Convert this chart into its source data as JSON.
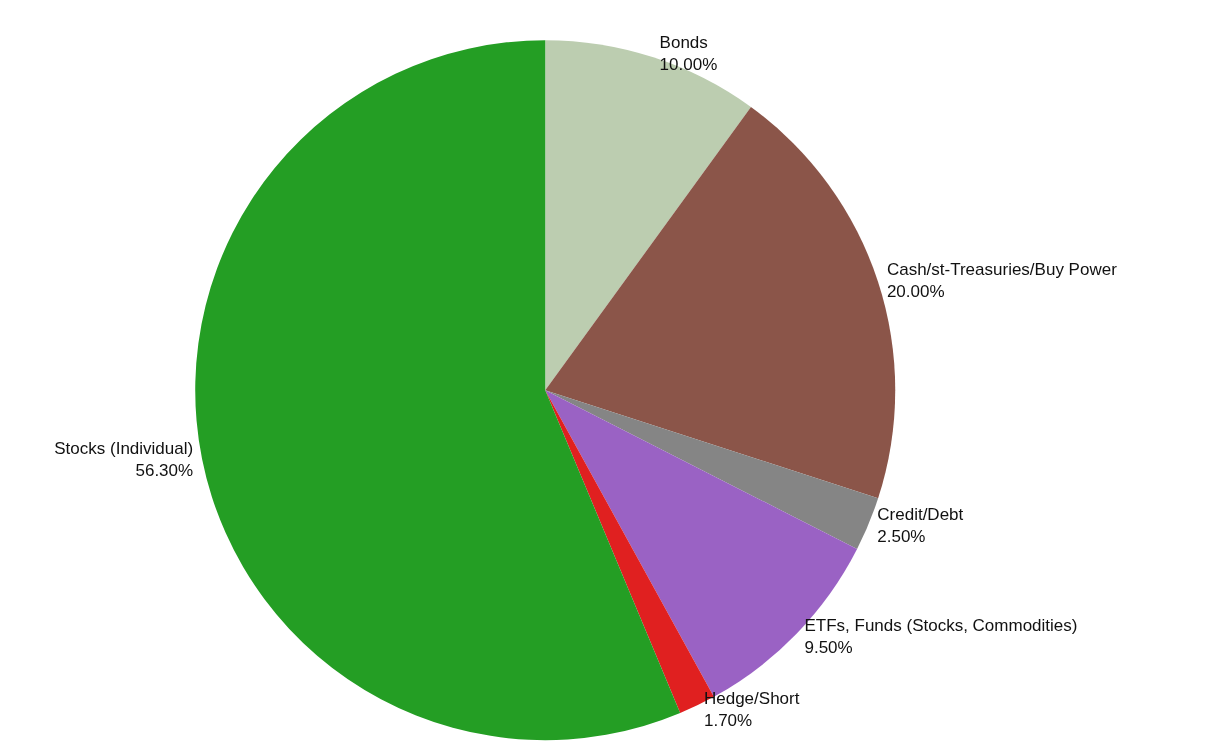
{
  "chart_data": {
    "type": "pie",
    "categories": [
      "Bonds",
      "Cash/st-Treasuries/Buy Power",
      "Credit/Debt",
      "ETFs, Funds (Stocks, Commodities)",
      "Hedge/Short",
      "Stocks (Individual)"
    ],
    "values": [
      10,
      20,
      2.5,
      9.5,
      1.7,
      56.3
    ],
    "value_labels": [
      "10.00%",
      "20.00%",
      "2.50%",
      "9.50%",
      "1.70%",
      "56.30%"
    ],
    "colors": [
      "#bccdb0",
      "#8b5549",
      "#858585",
      "#9a62c4",
      "#e02020",
      "#249e24"
    ],
    "legend": false
  }
}
